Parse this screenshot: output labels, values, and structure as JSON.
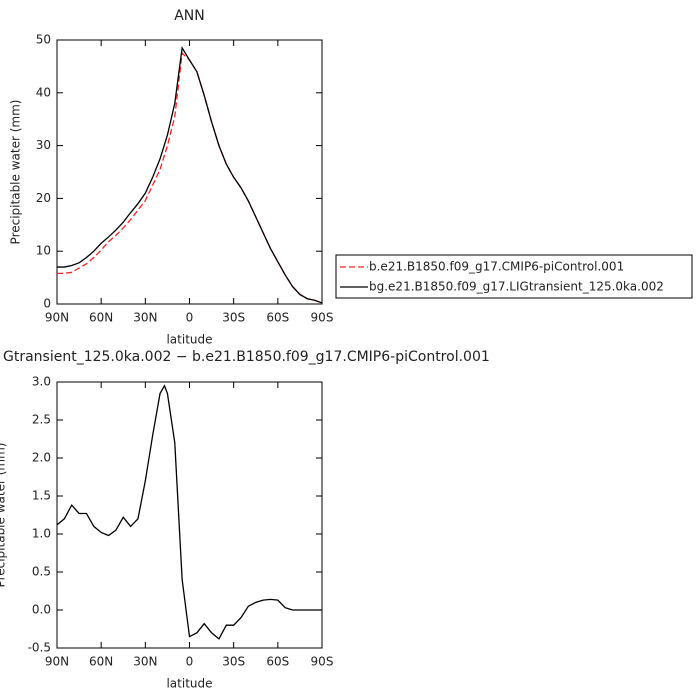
{
  "chart_data": [
    {
      "type": "line",
      "title": "ANN",
      "x_label": "latitude",
      "y_label": "Precipitable water (mm)",
      "x": [
        90,
        85,
        80,
        75,
        70,
        65,
        60,
        55,
        50,
        45,
        40,
        35,
        30,
        25,
        20,
        15,
        10,
        5,
        0,
        -5,
        -10,
        -15,
        -20,
        -25,
        -30,
        -35,
        -40,
        -45,
        -50,
        -55,
        -60,
        -65,
        -70,
        -75,
        -80,
        -85,
        -90
      ],
      "series": [
        {
          "name": "b.e21.B1850.f09_g17.CMIP6-piControl.001",
          "color": "#ff2020",
          "line_style": "dashed",
          "values": [
            5.8,
            5.8,
            6.0,
            6.8,
            7.6,
            8.8,
            10.2,
            11.8,
            13,
            14.4,
            16,
            17.8,
            19.6,
            22.5,
            25.5,
            30,
            35.5,
            47.5,
            46.2,
            44,
            39.5,
            34.5,
            30,
            26.5,
            24,
            22,
            19.5,
            16.5,
            13.5,
            10.5,
            8,
            5.5,
            3.3,
            1.8,
            1.0,
            0.7,
            0.2
          ]
        },
        {
          "name": "bg.e21.B1850.f09_g17.LIGtransient_125.0ka.002",
          "color": "#000000",
          "line_style": "solid",
          "values": [
            7.0,
            7.0,
            7.3,
            7.8,
            8.8,
            10,
            11.5,
            12.7,
            14,
            15.5,
            17.3,
            19,
            21,
            24,
            27.5,
            32,
            38,
            48.5,
            46.2,
            44,
            39.5,
            34.5,
            30,
            26.5,
            24,
            22,
            19.5,
            16.5,
            13.5,
            10.5,
            8,
            5.5,
            3.3,
            1.8,
            1.0,
            0.7,
            0.2
          ]
        }
      ],
      "xlim": [
        90,
        -90
      ],
      "xticks": [
        {
          "value": 90,
          "label": "90N"
        },
        {
          "value": 60,
          "label": "60N"
        },
        {
          "value": 30,
          "label": "30N"
        },
        0,
        {
          "value": -30,
          "label": "30S"
        },
        {
          "value": -60,
          "label": "60S"
        },
        {
          "value": -90,
          "label": "90S"
        }
      ],
      "ylim": [
        0,
        50
      ],
      "yticks": [
        0,
        10,
        20,
        30,
        40,
        50
      ],
      "grid": false,
      "legend": "right"
    },
    {
      "type": "line",
      "title": "Gtransient_125.0ka.002 − b.e21.B1850.f09_g17.CMIP6-piControl.001",
      "x_label": "latitude",
      "y_label": "Precipitable water (mm)",
      "x": [
        90,
        85,
        80,
        75,
        70,
        65,
        60,
        55,
        50,
        45,
        40,
        35,
        30,
        25,
        20,
        17,
        15,
        10,
        5,
        0,
        -5,
        -10,
        -15,
        -20,
        -25,
        -30,
        -35,
        -40,
        -45,
        -50,
        -55,
        -60,
        -65,
        -70,
        -75,
        -80,
        -85,
        -90
      ],
      "series": [
        {
          "color": "#000000",
          "line_style": "solid",
          "values": [
            1.12,
            1.2,
            1.38,
            1.27,
            1.27,
            1.1,
            1.02,
            0.98,
            1.05,
            1.22,
            1.1,
            1.2,
            1.7,
            2.3,
            2.85,
            2.95,
            2.85,
            2.2,
            0.4,
            -0.35,
            -0.3,
            -0.18,
            -0.3,
            -0.38,
            -0.2,
            -0.2,
            -0.1,
            0.05,
            0.1,
            0.13,
            0.14,
            0.13,
            0.03,
            0.0,
            0.0,
            0.0,
            0.0,
            0.0
          ]
        }
      ],
      "xlim": [
        90,
        -90
      ],
      "xticks": [
        {
          "value": 90,
          "label": "90N"
        },
        {
          "value": 60,
          "label": "60N"
        },
        {
          "value": 30,
          "label": "30N"
        },
        0,
        {
          "value": -30,
          "label": "30S"
        },
        {
          "value": -60,
          "label": "60S"
        },
        {
          "value": -90,
          "label": "90S"
        }
      ],
      "ylim": [
        -0.5,
        3.0
      ],
      "yticks": [
        -0.5,
        {
          "value": 0,
          "label": "0.0"
        },
        0.5,
        {
          "value": 1,
          "label": "1.0"
        },
        1.5,
        {
          "value": 2,
          "label": "2.0"
        },
        2.5,
        {
          "value": 3,
          "label": "3.0"
        }
      ],
      "grid": false
    }
  ]
}
